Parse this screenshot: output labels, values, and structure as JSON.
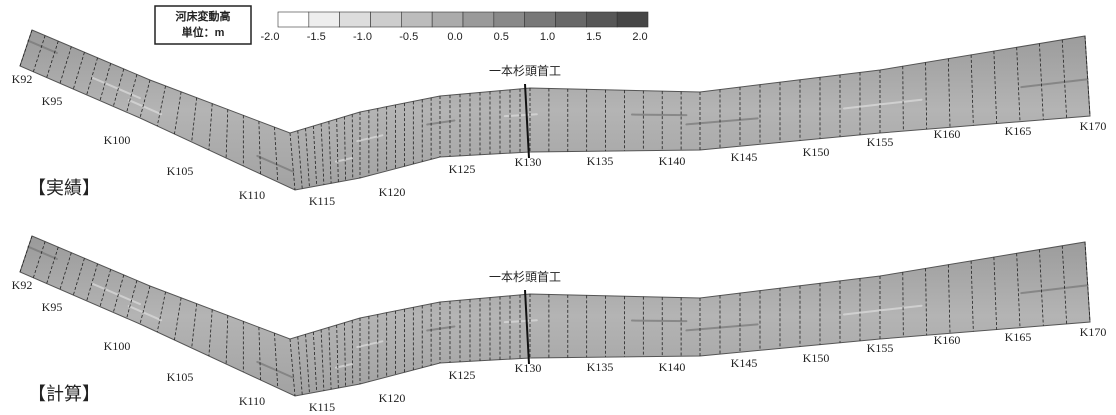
{
  "legend": {
    "title": "河床変動高",
    "unit": "単位：m",
    "ticks": [
      "-2.0",
      "-1.5",
      "-1.0",
      "-0.5",
      "0.0",
      "0.5",
      "1.0",
      "1.5",
      "2.0"
    ]
  },
  "panels": [
    {
      "label": "【実績】",
      "weir": "一本杉頭首工",
      "stations": [
        "K92",
        "K95",
        "K100",
        "K105",
        "K110",
        "K115",
        "K120",
        "K125",
        "K130",
        "K135",
        "K140",
        "K145",
        "K150",
        "K155",
        "K160",
        "K165",
        "K170"
      ]
    },
    {
      "label": "【計算】",
      "weir": "一本杉頭首工",
      "stations": [
        "K92",
        "K95",
        "K100",
        "K105",
        "K110",
        "K115",
        "K120",
        "K125",
        "K130",
        "K135",
        "K140",
        "K145",
        "K150",
        "K155",
        "K160",
        "K165",
        "K170"
      ]
    }
  ]
}
